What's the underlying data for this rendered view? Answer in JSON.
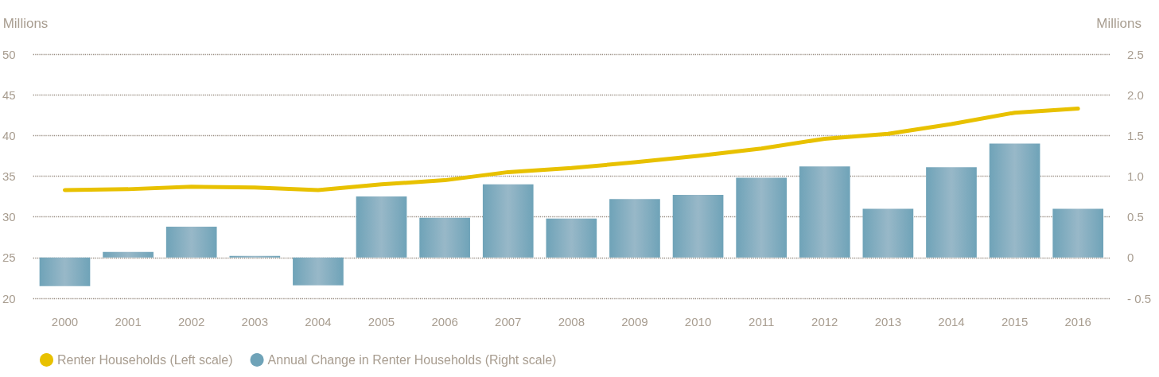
{
  "chart_data": {
    "type": "bar",
    "ylabel": "Millions",
    "y2label": "Millions",
    "categories": [
      "2000",
      "2001",
      "2002",
      "2003",
      "2004",
      "2005",
      "2006",
      "2007",
      "2008",
      "2009",
      "2010",
      "2011",
      "2012",
      "2013",
      "2014",
      "2015",
      "2016"
    ],
    "series": [
      {
        "name": "Renter Households (Left scale)",
        "type": "line",
        "color": "#e8c100",
        "values": [
          33.3,
          33.4,
          33.7,
          33.6,
          33.3,
          34.0,
          34.5,
          35.5,
          36.0,
          36.7,
          37.5,
          38.4,
          39.6,
          40.2,
          41.4,
          42.8,
          43.3
        ]
      },
      {
        "name": "Annual Change in Renter Households (Right scale)",
        "axis": "y2",
        "color": "#6fa3b8",
        "values": [
          -0.35,
          0.07,
          0.38,
          0.02,
          -0.34,
          0.75,
          0.49,
          0.9,
          0.48,
          0.72,
          0.77,
          0.98,
          1.12,
          0.6,
          1.11,
          1.4,
          0.6
        ]
      }
    ],
    "ylim": [
      20,
      50
    ],
    "yticks": [
      20,
      25,
      30,
      35,
      40,
      45,
      50
    ],
    "y2lim": [
      -0.5,
      2.5
    ],
    "y2ticks": [
      {
        "value": -0.5,
        "label": "- 0.5"
      },
      0,
      0.5,
      {
        "value": 1,
        "label": "1.0"
      },
      1.5,
      {
        "value": 2,
        "label": "2.0"
      },
      2.5
    ],
    "grid": "y",
    "legend": "bottom left",
    "marker": "none",
    "line_style": "solid"
  }
}
